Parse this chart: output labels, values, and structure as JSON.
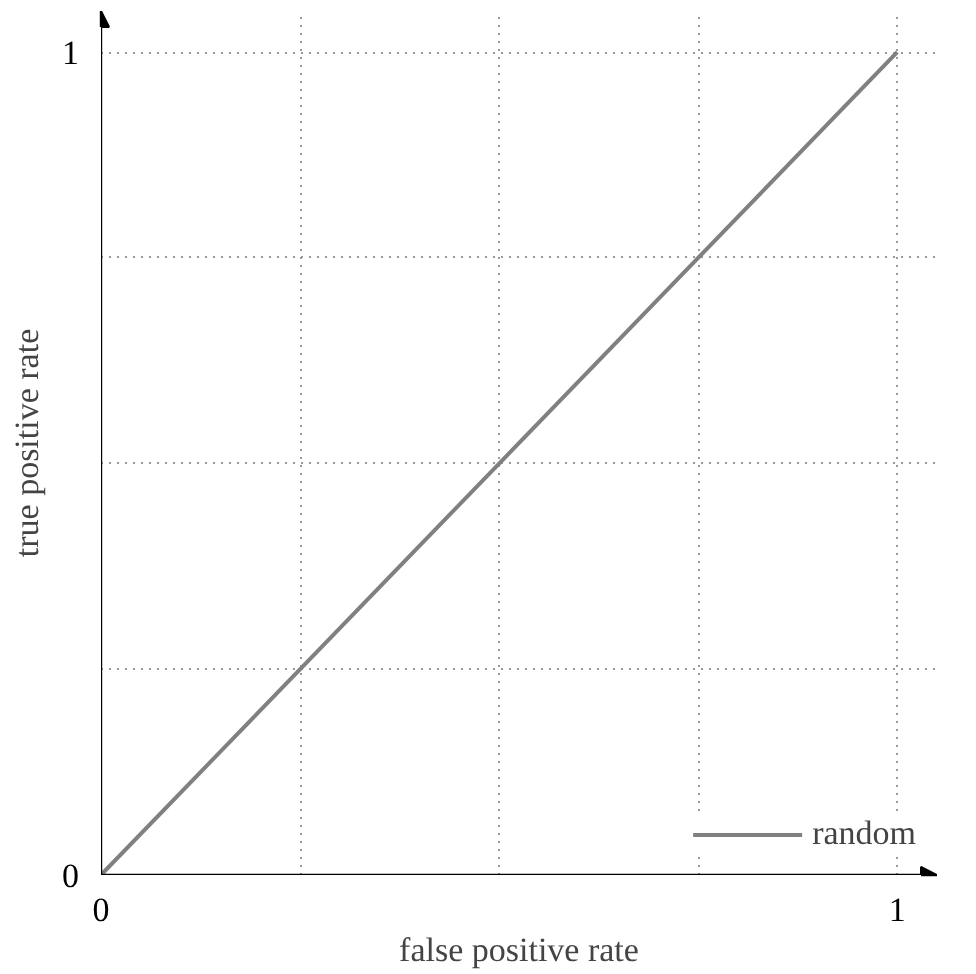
{
  "chart_data": {
    "type": "line",
    "xlabel": "false positive rate",
    "ylabel": "true positive rate",
    "x": [
      0,
      1
    ],
    "series": [
      {
        "name": "random",
        "color": "#808080",
        "values": [
          0,
          1
        ]
      }
    ],
    "xlim": [
      0,
      1.05
    ],
    "ylim": [
      0,
      1.05
    ],
    "xticks": [
      0,
      {
        "value": 0.25,
        "label": null
      },
      {
        "value": 0.5,
        "label": null
      },
      {
        "value": 0.75,
        "label": null
      },
      1
    ],
    "yticks": [
      0,
      {
        "value": 0.25,
        "label": null
      },
      {
        "value": 0.5,
        "label": null
      },
      {
        "value": 0.75,
        "label": null
      },
      1
    ],
    "grid": true,
    "legend": "bottom right",
    "marker": "none",
    "line_style": "solid"
  }
}
